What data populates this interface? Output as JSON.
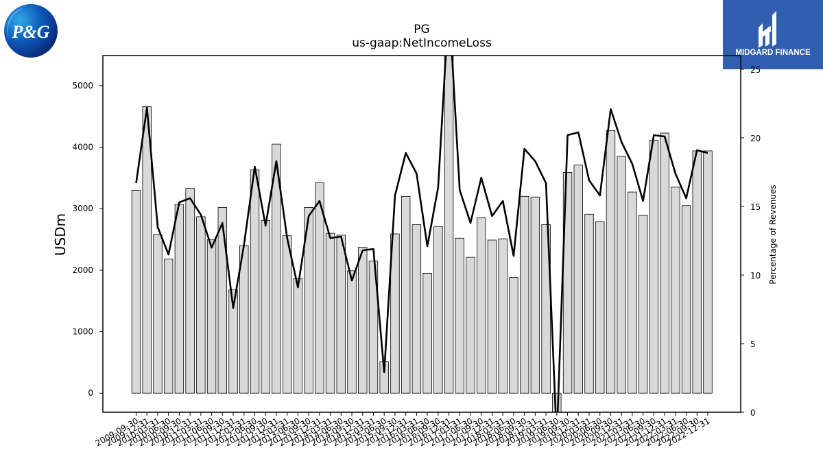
{
  "logos": {
    "company": {
      "text": "P&G"
    },
    "publisher": {
      "text": "MIDGARD FINANCE"
    }
  },
  "chart_data": {
    "type": "bar",
    "title": "PG",
    "subtitle": "us-gaap:NetIncomeLoss",
    "ylabel": "USDm",
    "y2label": "Percentage of Revenues",
    "ylim": [
      -310,
      5490
    ],
    "y2lim": [
      0,
      26
    ],
    "yticks": [
      0,
      1000,
      2000,
      3000,
      4000,
      5000
    ],
    "y2ticks": [
      0,
      5,
      10,
      15,
      20,
      25
    ],
    "colors": {
      "bar_fill": "#d9d9d9",
      "bar_edge": "#000000",
      "line": "#000000"
    },
    "categories": [
      "2009-09-30",
      "2009-12-31",
      "2010-03-31",
      "2010-06-30",
      "2010-09-30",
      "2010-12-31",
      "2011-03-31",
      "2011-06-30",
      "2011-09-30",
      "2011-12-31",
      "2012-03-31",
      "2012-06-30",
      "2012-09-30",
      "2012-12-31",
      "2013-03-31",
      "2013-06-30",
      "2013-09-30",
      "2013-12-31",
      "2014-03-31",
      "2014-06-30",
      "2014-09-30",
      "2014-12-31",
      "2015-03-31",
      "2015-06-30",
      "2015-09-30",
      "2015-12-31",
      "2016-03-31",
      "2016-06-30",
      "2016-09-30",
      "2016-12-31",
      "2017-03-31",
      "2017-06-30",
      "2017-09-30",
      "2017-12-31",
      "2018-03-31",
      "2018-06-30",
      "2018-09-30",
      "2018-12-31",
      "2019-03-31",
      "2019-06-30",
      "2019-09-30",
      "2019-12-31",
      "2020-03-31",
      "2020-06-30",
      "2020-09-30",
      "2020-12-31",
      "2021-03-31",
      "2021-06-30",
      "2021-09-30",
      "2021-12-31",
      "2022-03-31",
      "2022-06-30",
      "2022-09-30",
      "2022-12-31"
    ],
    "series": [
      {
        "name": "",
        "type": "bar",
        "axis": "left",
        "values": [
          3300,
          4660,
          2580,
          2180,
          3070,
          3330,
          2870,
          2500,
          3020,
          1680,
          2400,
          3630,
          2810,
          4050,
          2560,
          1870,
          3020,
          3420,
          2600,
          2570,
          1990,
          2370,
          2150,
          510,
          2590,
          3200,
          2740,
          1950,
          2710,
          5490,
          2520,
          2210,
          2850,
          2490,
          2510,
          1880,
          3200,
          3190,
          2740,
          -310,
          3590,
          3710,
          2910,
          2790,
          4270,
          3850,
          3270,
          2890,
          4110,
          4230,
          3350,
          3050,
          3940,
          3940
        ]
      },
      {
        "name": "",
        "type": "line",
        "axis": "right",
        "values": [
          16.7,
          22.2,
          13.5,
          11.5,
          15.3,
          15.6,
          14.4,
          12.0,
          13.8,
          7.6,
          12.2,
          17.9,
          13.6,
          18.3,
          12.7,
          9.1,
          14.3,
          15.4,
          12.7,
          12.8,
          9.6,
          11.8,
          11.9,
          2.9,
          15.8,
          18.9,
          17.4,
          12.1,
          16.4,
          30.0,
          16.2,
          13.8,
          17.1,
          14.3,
          15.4,
          11.4,
          19.2,
          18.3,
          16.7,
          -2.0,
          20.2,
          20.4,
          16.9,
          15.8,
          22.1,
          19.7,
          18.1,
          15.4,
          20.2,
          20.1,
          17.4,
          15.6,
          19.1,
          18.9
        ]
      }
    ]
  }
}
